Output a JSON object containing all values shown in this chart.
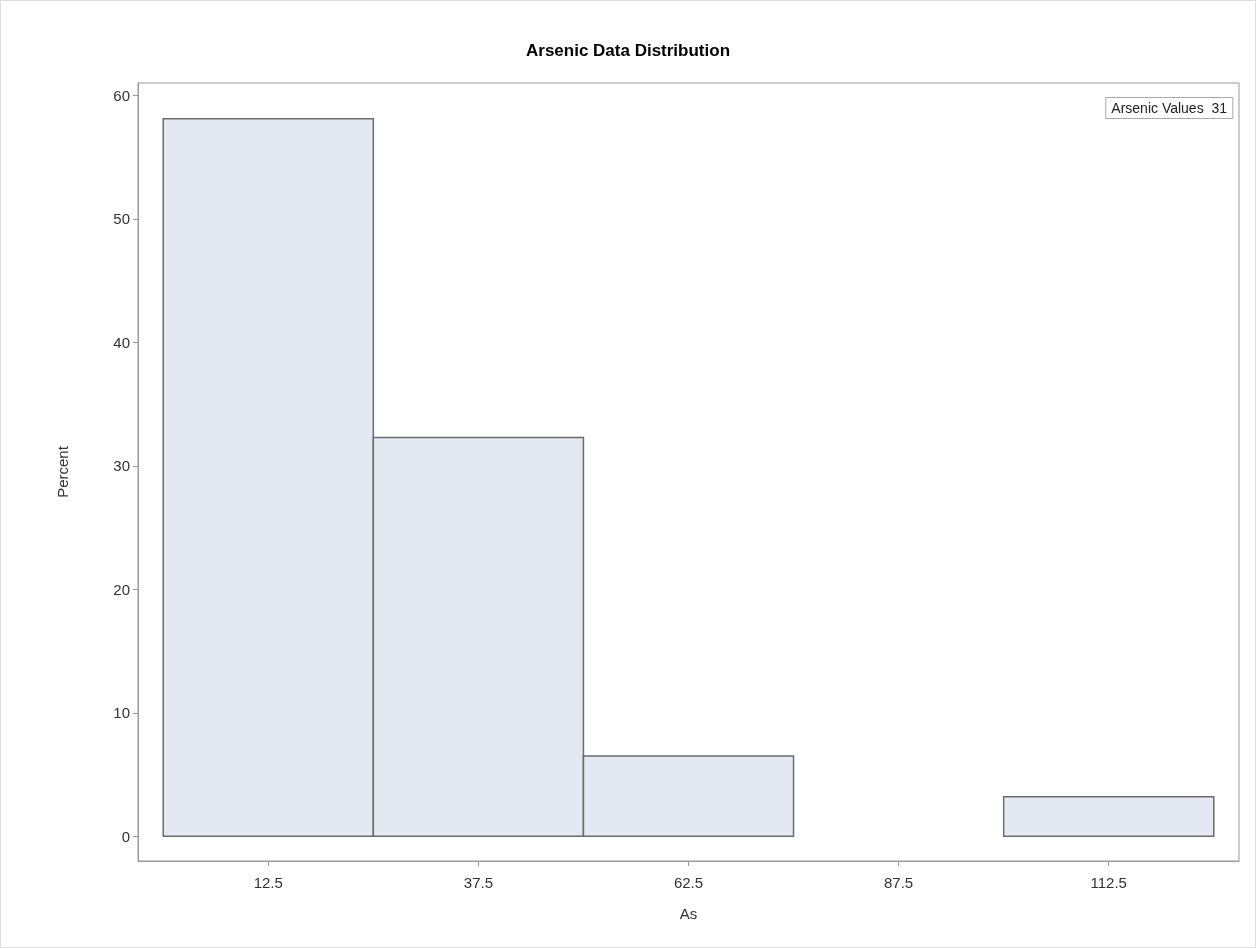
{
  "chart_data": {
    "type": "histogram",
    "title": "Arsenic Data Distribution",
    "xlabel": "As",
    "ylabel": "Percent",
    "bins": [
      0,
      25,
      50,
      75,
      100,
      125
    ],
    "values": [
      58.1,
      32.3,
      6.5,
      0,
      3.2
    ],
    "color": "#e4e8f1",
    "xlim": [
      -3,
      128
    ],
    "xticks": [
      12.5,
      37.5,
      62.5,
      87.5,
      112.5
    ],
    "ylim": [
      -2,
      61
    ],
    "yticks": [
      0,
      10,
      20,
      30,
      40,
      50,
      60
    ],
    "annotations": [
      "Arsenic Values  31"
    ],
    "grid": false
  }
}
